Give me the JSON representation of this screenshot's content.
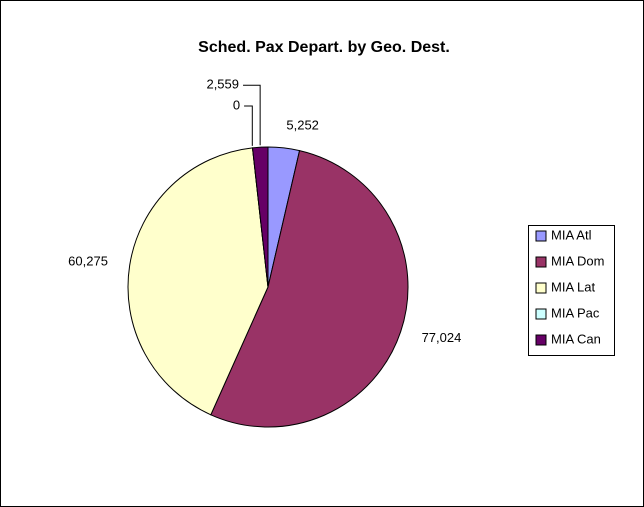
{
  "chart_data": {
    "type": "pie",
    "title": "Sched. Pax Depart. by Geo. Dest.",
    "categories": [
      "MIA Atl",
      "MIA Dom",
      "MIA Lat",
      "MIA Pac",
      "MIA Can"
    ],
    "values": [
      5252,
      77024,
      60275,
      0,
      2559
    ],
    "value_labels": [
      "5,252",
      "77,024",
      "60,275",
      "0",
      "2,559"
    ],
    "colors": [
      "#9999ff",
      "#993366",
      "#ffffcc",
      "#ccffff",
      "#660066"
    ],
    "legend": "right"
  }
}
